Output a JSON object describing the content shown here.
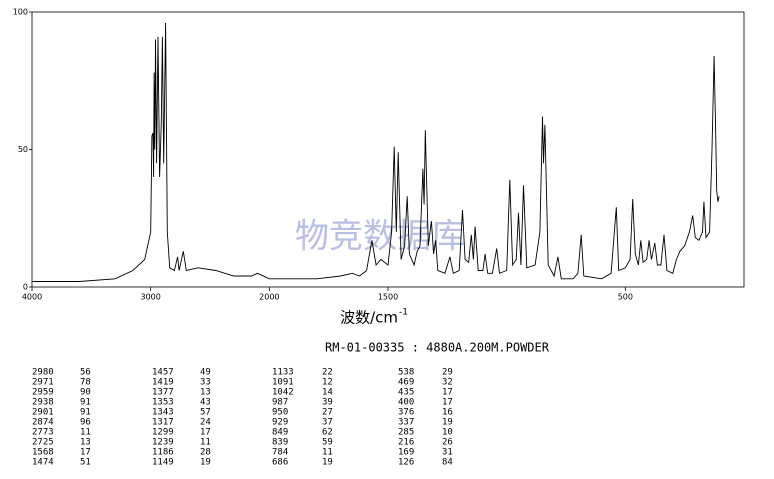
{
  "chart_data": {
    "type": "line",
    "subtitle": "RM-01-00335 : 4880A.200M.POWDER",
    "x_label": "波数/cm",
    "x_label_sup": "-1",
    "watermark": "物竞数据库",
    "color": "#000000",
    "xlim": [
      4000,
      0
    ],
    "xticks": [
      4000,
      3000,
      2000,
      1500,
      500
    ],
    "ylim": [
      0,
      100
    ],
    "yticks": [
      0,
      50,
      100
    ],
    "x": [
      4000,
      3600,
      3300,
      3150,
      3050,
      3000,
      2990,
      2980,
      2975,
      2971,
      2965,
      2959,
      2950,
      2938,
      2925,
      2910,
      2901,
      2890,
      2874,
      2860,
      2840,
      2800,
      2773,
      2760,
      2725,
      2700,
      2600,
      2450,
      2300,
      2150,
      2100,
      2000,
      1800,
      1700,
      1650,
      1620,
      1590,
      1568,
      1550,
      1530,
      1500,
      1485,
      1474,
      1465,
      1457,
      1445,
      1430,
      1419,
      1410,
      1390,
      1377,
      1365,
      1353,
      1348,
      1343,
      1330,
      1317,
      1308,
      1299,
      1290,
      1260,
      1239,
      1225,
      1200,
      1186,
      1175,
      1160,
      1149,
      1140,
      1133,
      1120,
      1100,
      1091,
      1080,
      1060,
      1042,
      1030,
      1000,
      987,
      975,
      960,
      950,
      940,
      929,
      915,
      880,
      860,
      849,
      845,
      839,
      825,
      800,
      784,
      770,
      720,
      700,
      686,
      675,
      600,
      560,
      538,
      528,
      500,
      480,
      469,
      458,
      445,
      435,
      425,
      410,
      400,
      390,
      376,
      365,
      350,
      337,
      325,
      300,
      285,
      270,
      250,
      230,
      216,
      205,
      190,
      175,
      169,
      160,
      145,
      135,
      126,
      120,
      115,
      110,
      105
    ],
    "y": [
      2,
      2,
      3,
      6,
      10,
      20,
      55,
      56,
      40,
      78,
      50,
      90,
      45,
      91,
      40,
      60,
      91,
      45,
      96,
      20,
      7,
      6,
      11,
      6,
      13,
      6,
      7,
      6,
      4,
      4,
      5,
      3,
      3,
      4,
      5,
      4,
      6,
      17,
      8,
      10,
      8,
      20,
      51,
      20,
      49,
      10,
      15,
      33,
      12,
      8,
      13,
      15,
      43,
      30,
      57,
      15,
      24,
      12,
      17,
      6,
      5,
      11,
      5,
      6,
      28,
      10,
      9,
      19,
      10,
      22,
      6,
      6,
      12,
      5,
      5,
      14,
      5,
      6,
      39,
      8,
      10,
      27,
      8,
      37,
      7,
      8,
      20,
      62,
      45,
      59,
      8,
      4,
      11,
      3,
      3,
      5,
      19,
      4,
      3,
      5,
      29,
      6,
      7,
      10,
      32,
      12,
      8,
      17,
      9,
      10,
      17,
      10,
      16,
      8,
      8,
      19,
      6,
      5,
      10,
      13,
      15,
      20,
      26,
      18,
      17,
      20,
      31,
      18,
      20,
      50,
      84,
      60,
      35,
      31,
      33
    ],
    "peaks": [
      {
        "wavenumbers": [
          2980,
          2971,
          2959,
          2938,
          2901,
          2874,
          2773,
          2725,
          1568,
          1474
        ],
        "intensities": [
          56,
          78,
          90,
          91,
          91,
          96,
          11,
          13,
          17,
          51
        ]
      },
      {
        "wavenumbers": [
          1457,
          1419,
          1377,
          1353,
          1343,
          1317,
          1299,
          1239,
          1186,
          1149
        ],
        "intensities": [
          49,
          33,
          13,
          43,
          57,
          24,
          17,
          11,
          28,
          19
        ]
      },
      {
        "wavenumbers": [
          1133,
          1091,
          1042,
          987,
          950,
          929,
          849,
          839,
          784,
          686
        ],
        "intensities": [
          22,
          12,
          14,
          39,
          27,
          37,
          62,
          59,
          11,
          19
        ]
      },
      {
        "wavenumbers": [
          538,
          469,
          435,
          400,
          376,
          337,
          285,
          216,
          169,
          126
        ],
        "intensities": [
          29,
          32,
          17,
          17,
          16,
          19,
          10,
          26,
          31,
          84
        ]
      }
    ]
  }
}
